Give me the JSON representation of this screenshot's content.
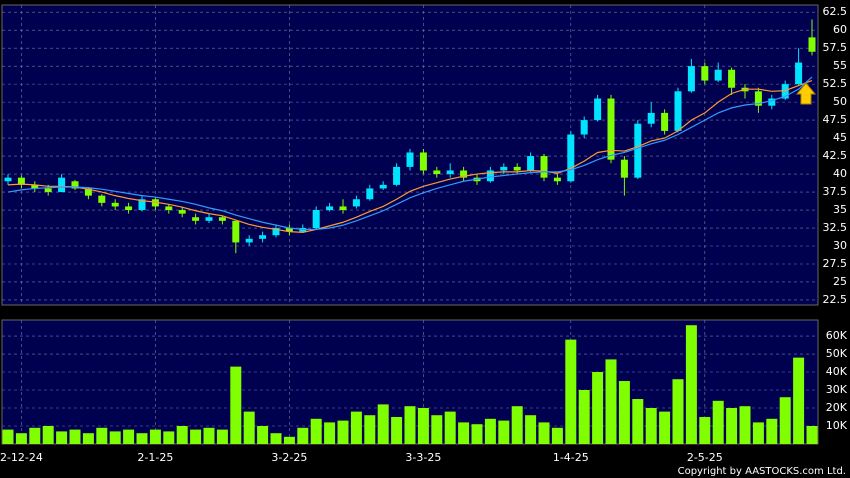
{
  "chart_data": [
    {
      "type": "candlestick",
      "open": [
        39,
        39.5,
        38.5,
        38,
        37.5,
        39,
        38,
        37,
        36,
        35.5,
        35,
        36.5,
        35.5,
        35,
        34,
        33.5,
        34,
        33.5,
        30.5,
        31,
        31.5,
        32.5,
        32,
        32.5,
        35,
        35.5,
        35.5,
        36.5,
        38,
        38.5,
        41,
        43,
        40.5,
        40,
        40.5,
        39.5,
        39,
        40.5,
        41,
        40.5,
        42.5,
        39.5,
        39,
        45.5,
        47.5,
        50.5,
        42,
        39.5,
        47,
        48.5,
        46,
        51.5,
        55,
        53,
        54.5,
        52,
        51.5,
        49.5,
        50.5,
        52.5,
        59
      ],
      "high": [
        40,
        39.8,
        39,
        38.5,
        40,
        39.2,
        38.2,
        37.2,
        36.5,
        36,
        37,
        36.8,
        35.8,
        35.5,
        34.5,
        34.5,
        34.2,
        33.5,
        31.5,
        32,
        33,
        33,
        33,
        35.5,
        36,
        36.5,
        37,
        38.5,
        39,
        41.5,
        43.5,
        43.5,
        41,
        41.5,
        41,
        40,
        41,
        41.5,
        41.5,
        43,
        42.8,
        40,
        46,
        48,
        51,
        51,
        42.5,
        47.5,
        50,
        49,
        52,
        56,
        55.5,
        55.5,
        54.8,
        52.5,
        52,
        51,
        53,
        57.5,
        61.5
      ],
      "low": [
        38.5,
        38,
        37.5,
        37,
        37.5,
        37.8,
        36.5,
        35.5,
        35,
        34.5,
        34.8,
        35,
        34.5,
        34,
        33,
        33.2,
        33,
        29,
        30,
        30.5,
        31.2,
        31.5,
        31.8,
        32.3,
        34.8,
        34.5,
        35.2,
        36.3,
        37.8,
        38.3,
        40.5,
        40,
        39.5,
        39.5,
        39,
        38.5,
        38.8,
        40,
        40,
        40.3,
        39,
        38.5,
        38.8,
        45,
        47.3,
        41.5,
        37,
        39.3,
        46.5,
        45.5,
        45.8,
        51.3,
        52.5,
        52.8,
        51,
        50.5,
        48.5,
        49,
        50.3,
        52.3,
        56.5
      ],
      "close": [
        39.5,
        38.5,
        38,
        37.5,
        39.5,
        38,
        37,
        36,
        35.5,
        35,
        36.5,
        35.5,
        35,
        34.5,
        33.5,
        34,
        33.5,
        30.5,
        31,
        31.5,
        32.5,
        32,
        32.5,
        35,
        35.5,
        35,
        36.5,
        38,
        38.5,
        41,
        43,
        40.5,
        40,
        40.5,
        39.5,
        39,
        40.5,
        41,
        40.5,
        42.5,
        39.5,
        39,
        45.5,
        47.5,
        50.5,
        42,
        39.5,
        47,
        48.5,
        46,
        51.5,
        55,
        53,
        54.5,
        52,
        51.5,
        49.5,
        50.5,
        52.5,
        55.5,
        57
      ],
      "up_color": "#00e5ff",
      "down_color": "#7fff00",
      "series": [
        {
          "color": "#ff9933",
          "values": [
            38.5,
            38.6,
            38.5,
            38.3,
            38.3,
            38.2,
            37.9,
            37.5,
            37,
            36.6,
            36.3,
            36.1,
            35.8,
            35.4,
            34.9,
            34.5,
            34.2,
            33.6,
            33,
            32.6,
            32.3,
            32,
            31.9,
            32.3,
            32.8,
            33.3,
            34,
            34.8,
            35.5,
            36.5,
            37.6,
            38.3,
            38.8,
            39.3,
            39.7,
            40,
            40.2,
            40.3,
            40.3,
            40.5,
            40.4,
            40.1,
            40.8,
            41.8,
            43,
            43.3,
            43.2,
            43.8,
            44.6,
            45,
            46,
            47.5,
            48.5,
            50,
            51.2,
            51.8,
            51.8,
            51.5,
            51.6,
            52.3,
            53
          ]
        },
        {
          "color": "#3399ff",
          "values": [
            37.5,
            37.8,
            38,
            38.1,
            38.2,
            38.2,
            38.1,
            37.9,
            37.6,
            37.3,
            37,
            36.8,
            36.5,
            36.2,
            35.8,
            35.3,
            34.9,
            34.3,
            33.8,
            33.3,
            32.9,
            32.5,
            32.3,
            32.3,
            32.5,
            32.9,
            33.5,
            34.2,
            34.9,
            35.8,
            36.7,
            37.4,
            38,
            38.5,
            39,
            39.3,
            39.6,
            39.8,
            40,
            40.2,
            40.3,
            40.3,
            40.6,
            41.2,
            42,
            42.6,
            43,
            43.6,
            44.2,
            44.7,
            45.5,
            46.5,
            47.5,
            48.5,
            49.2,
            49.6,
            49.8,
            50.2,
            50.8,
            51.8,
            53.5
          ]
        }
      ],
      "ylim": [
        21.8,
        63.5
      ],
      "yticks": [
        22.5,
        25,
        27.5,
        30,
        32.5,
        35,
        37.5,
        40,
        42.5,
        45,
        47.5,
        50,
        52.5,
        55,
        57.5,
        60,
        62.5
      ],
      "grid": true
    },
    {
      "type": "bar",
      "categories": [
        null,
        "2-12-24",
        null,
        null,
        null,
        null,
        null,
        null,
        null,
        null,
        null,
        "2-1-25",
        null,
        null,
        null,
        null,
        null,
        null,
        null,
        null,
        null,
        "3-2-25",
        null,
        null,
        null,
        null,
        null,
        null,
        null,
        null,
        null,
        "3-3-25",
        null,
        null,
        null,
        null,
        null,
        null,
        null,
        null,
        null,
        null,
        "1-4-25",
        null,
        null,
        null,
        null,
        null,
        null,
        null,
        null,
        null,
        "2-5-25",
        null,
        null,
        null,
        null,
        null,
        null,
        null,
        null
      ],
      "values": [
        8000,
        6000,
        9000,
        10000,
        7000,
        8000,
        6000,
        9000,
        7000,
        8000,
        6000,
        8000,
        7000,
        10000,
        8000,
        9000,
        8000,
        43000,
        18000,
        10000,
        6000,
        4000,
        9000,
        14000,
        12000,
        13000,
        18000,
        16000,
        22000,
        15000,
        21000,
        20000,
        16000,
        18000,
        12000,
        11000,
        14000,
        13000,
        21000,
        16000,
        12000,
        9000,
        58000,
        30000,
        40000,
        47000,
        35000,
        25000,
        20000,
        18000,
        36000,
        66000,
        15000,
        24000,
        20000,
        21000,
        12000,
        14000,
        26000,
        48000,
        10000
      ],
      "color": "#7fff00",
      "ylim": [
        0,
        68900
      ],
      "yticks": [
        {
          "value": 10000,
          "label": "10K"
        },
        {
          "value": 20000,
          "label": "20K"
        },
        {
          "value": 30000,
          "label": "30K"
        },
        {
          "value": 40000,
          "label": "40K"
        },
        {
          "value": 50000,
          "label": "50K"
        },
        {
          "value": 60000,
          "label": "60K"
        }
      ],
      "grid": true,
      "copyright": "Copyright by AASTOCKS.com Ltd."
    }
  ]
}
